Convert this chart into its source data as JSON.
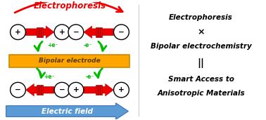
{
  "bg_color": "#ffffff",
  "electrode_color": "#FFA500",
  "electrode_edge_color": "#CC8800",
  "electrode_text": "Bipolar electrode",
  "electrode_text_color": "#5C3A00",
  "red_color": "#EE0000",
  "green_color": "#00BB00",
  "blue_color": "#5B9BD5",
  "blue_edge_color": "#3A6FBF",
  "black": "#000000",
  "white": "#ffffff",
  "electrophoresis_text": "Electrophoresis",
  "electric_field_text": "Electric field",
  "right_lines": [
    "Electrophoresis",
    "×",
    "Bipolar electrochemistry",
    "||",
    "Smart Access to",
    "Anisotropic Materials"
  ],
  "plus_e": "+e⁻",
  "minus_e": "-e⁻",
  "plus_sym": "+",
  "minus_sym": "−"
}
